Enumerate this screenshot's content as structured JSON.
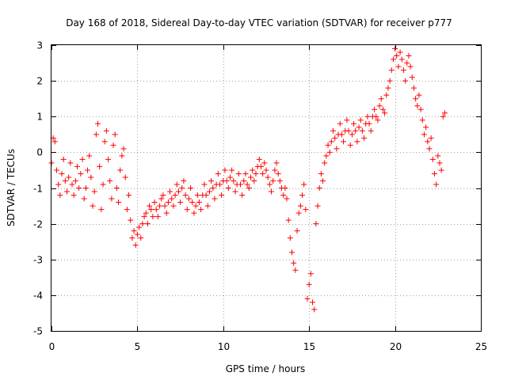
{
  "chart_data": {
    "type": "scatter",
    "title": "Day 168 of 2018, Sidereal Day-to-day VTEC variation (SDTVAR) for receiver p777",
    "xlabel": "GPS time / hours",
    "ylabel": "SDTVAR / TECUs",
    "xlim": [
      0,
      25
    ],
    "ylim": [
      -5,
      3
    ],
    "xticks": [
      0,
      5,
      10,
      15,
      20,
      25
    ],
    "yticks": [
      -5,
      -4,
      -3,
      -2,
      -1,
      0,
      1,
      2,
      3
    ],
    "xtick_labels": [
      "0",
      "5",
      "10",
      "15",
      "20",
      "25"
    ],
    "ytick_labels": [
      "-5",
      "-4",
      "-3",
      "-2",
      "-1",
      "0",
      "1",
      "2",
      "3"
    ],
    "grid": true,
    "marker": "plus",
    "color": "#ff0000",
    "series": [
      {
        "name": "p777",
        "points": [
          [
            0.0,
            -0.3
          ],
          [
            0.1,
            0.4
          ],
          [
            0.2,
            0.3
          ],
          [
            0.3,
            -0.5
          ],
          [
            0.4,
            -0.9
          ],
          [
            0.5,
            -1.2
          ],
          [
            0.6,
            -0.6
          ],
          [
            0.7,
            -0.2
          ],
          [
            0.8,
            -0.8
          ],
          [
            0.9,
            -1.1
          ],
          [
            1.0,
            -0.7
          ],
          [
            1.1,
            -0.3
          ],
          [
            1.2,
            -0.9
          ],
          [
            1.3,
            -1.2
          ],
          [
            1.4,
            -0.8
          ],
          [
            1.5,
            -0.4
          ],
          [
            1.6,
            -1.0
          ],
          [
            1.7,
            -0.6
          ],
          [
            1.8,
            -0.2
          ],
          [
            1.9,
            -1.3
          ],
          [
            2.0,
            -1.0
          ],
          [
            2.1,
            -0.5
          ],
          [
            2.2,
            -0.1
          ],
          [
            2.3,
            -0.7
          ],
          [
            2.4,
            -1.5
          ],
          [
            2.5,
            -1.1
          ],
          [
            2.6,
            0.5
          ],
          [
            2.7,
            0.8
          ],
          [
            2.8,
            -0.4
          ],
          [
            2.9,
            -1.6
          ],
          [
            3.0,
            -0.9
          ],
          [
            3.1,
            0.3
          ],
          [
            3.2,
            0.6
          ],
          [
            3.3,
            -0.2
          ],
          [
            3.4,
            -0.8
          ],
          [
            3.5,
            -1.3
          ],
          [
            3.6,
            0.2
          ],
          [
            3.7,
            0.5
          ],
          [
            3.8,
            -1.0
          ],
          [
            3.9,
            -1.4
          ],
          [
            4.0,
            -0.5
          ],
          [
            4.1,
            -0.1
          ],
          [
            4.2,
            0.1
          ],
          [
            4.3,
            -0.7
          ],
          [
            4.4,
            -1.6
          ],
          [
            4.5,
            -1.2
          ],
          [
            4.6,
            -1.9
          ],
          [
            4.7,
            -2.4
          ],
          [
            4.8,
            -2.2
          ],
          [
            4.9,
            -2.6
          ],
          [
            5.0,
            -2.3
          ],
          [
            5.1,
            -2.1
          ],
          [
            5.2,
            -2.4
          ],
          [
            5.3,
            -2.0
          ],
          [
            5.4,
            -1.8
          ],
          [
            5.5,
            -1.7
          ],
          [
            5.6,
            -2.0
          ],
          [
            5.7,
            -1.5
          ],
          [
            5.8,
            -1.6
          ],
          [
            5.9,
            -1.8
          ],
          [
            6.0,
            -1.4
          ],
          [
            6.1,
            -1.6
          ],
          [
            6.2,
            -1.8
          ],
          [
            6.3,
            -1.5
          ],
          [
            6.4,
            -1.3
          ],
          [
            6.5,
            -1.2
          ],
          [
            6.6,
            -1.5
          ],
          [
            6.7,
            -1.7
          ],
          [
            6.8,
            -1.4
          ],
          [
            6.9,
            -1.1
          ],
          [
            7.0,
            -1.3
          ],
          [
            7.1,
            -1.5
          ],
          [
            7.2,
            -1.2
          ],
          [
            7.3,
            -0.9
          ],
          [
            7.4,
            -1.1
          ],
          [
            7.5,
            -1.4
          ],
          [
            7.6,
            -1.0
          ],
          [
            7.7,
            -0.8
          ],
          [
            7.8,
            -1.2
          ],
          [
            7.9,
            -1.6
          ],
          [
            8.0,
            -1.3
          ],
          [
            8.1,
            -1.0
          ],
          [
            8.2,
            -1.4
          ],
          [
            8.3,
            -1.7
          ],
          [
            8.4,
            -1.5
          ],
          [
            8.5,
            -1.2
          ],
          [
            8.6,
            -1.4
          ],
          [
            8.7,
            -1.6
          ],
          [
            8.8,
            -1.2
          ],
          [
            8.9,
            -0.9
          ],
          [
            9.0,
            -1.2
          ],
          [
            9.1,
            -1.5
          ],
          [
            9.2,
            -1.1
          ],
          [
            9.3,
            -0.8
          ],
          [
            9.4,
            -1.0
          ],
          [
            9.5,
            -1.3
          ],
          [
            9.6,
            -0.9
          ],
          [
            9.7,
            -0.6
          ],
          [
            9.8,
            -0.9
          ],
          [
            9.9,
            -1.2
          ],
          [
            10.0,
            -0.8
          ],
          [
            10.1,
            -0.5
          ],
          [
            10.2,
            -0.8
          ],
          [
            10.3,
            -1.0
          ],
          [
            10.4,
            -0.7
          ],
          [
            10.5,
            -0.5
          ],
          [
            10.6,
            -0.8
          ],
          [
            10.7,
            -1.1
          ],
          [
            10.8,
            -0.9
          ],
          [
            10.9,
            -0.6
          ],
          [
            11.0,
            -0.9
          ],
          [
            11.1,
            -1.2
          ],
          [
            11.2,
            -0.8
          ],
          [
            11.3,
            -0.6
          ],
          [
            11.4,
            -0.9
          ],
          [
            11.5,
            -1.0
          ],
          [
            11.6,
            -0.7
          ],
          [
            11.7,
            -0.5
          ],
          [
            11.8,
            -0.8
          ],
          [
            11.9,
            -0.6
          ],
          [
            12.0,
            -0.4
          ],
          [
            12.1,
            -0.2
          ],
          [
            12.2,
            -0.4
          ],
          [
            12.3,
            -0.6
          ],
          [
            12.4,
            -0.3
          ],
          [
            12.5,
            -0.5
          ],
          [
            12.6,
            -0.7
          ],
          [
            12.7,
            -0.9
          ],
          [
            12.8,
            -1.1
          ],
          [
            12.9,
            -0.8
          ],
          [
            13.0,
            -0.5
          ],
          [
            13.1,
            -0.3
          ],
          [
            13.2,
            -0.6
          ],
          [
            13.3,
            -0.8
          ],
          [
            13.4,
            -1.0
          ],
          [
            13.5,
            -1.2
          ],
          [
            13.6,
            -1.0
          ],
          [
            13.7,
            -1.3
          ],
          [
            13.8,
            -1.9
          ],
          [
            13.9,
            -2.4
          ],
          [
            14.0,
            -2.8
          ],
          [
            14.1,
            -3.1
          ],
          [
            14.2,
            -3.3
          ],
          [
            14.3,
            -2.2
          ],
          [
            14.4,
            -1.7
          ],
          [
            14.5,
            -1.5
          ],
          [
            14.6,
            -1.2
          ],
          [
            14.7,
            -0.9
          ],
          [
            14.8,
            -1.6
          ],
          [
            14.9,
            -4.1
          ],
          [
            15.0,
            -3.7
          ],
          [
            15.1,
            -3.4
          ],
          [
            15.2,
            -4.2
          ],
          [
            15.3,
            -4.4
          ],
          [
            15.4,
            -2.0
          ],
          [
            15.5,
            -1.5
          ],
          [
            15.6,
            -1.0
          ],
          [
            15.7,
            -0.6
          ],
          [
            15.8,
            -0.8
          ],
          [
            15.9,
            -0.3
          ],
          [
            16.0,
            -0.1
          ],
          [
            16.1,
            0.2
          ],
          [
            16.2,
            0.0
          ],
          [
            16.3,
            0.3
          ],
          [
            16.4,
            0.6
          ],
          [
            16.5,
            0.4
          ],
          [
            16.6,
            0.1
          ],
          [
            16.7,
            0.5
          ],
          [
            16.8,
            0.8
          ],
          [
            16.9,
            0.5
          ],
          [
            17.0,
            0.3
          ],
          [
            17.1,
            0.6
          ],
          [
            17.2,
            0.9
          ],
          [
            17.3,
            0.6
          ],
          [
            17.4,
            0.2
          ],
          [
            17.5,
            0.5
          ],
          [
            17.6,
            0.8
          ],
          [
            17.7,
            0.6
          ],
          [
            17.8,
            0.3
          ],
          [
            17.9,
            0.7
          ],
          [
            18.0,
            0.9
          ],
          [
            18.1,
            0.6
          ],
          [
            18.2,
            0.4
          ],
          [
            18.3,
            0.8
          ],
          [
            18.4,
            1.0
          ],
          [
            18.5,
            0.8
          ],
          [
            18.6,
            0.6
          ],
          [
            18.7,
            1.0
          ],
          [
            18.8,
            1.2
          ],
          [
            18.9,
            1.0
          ],
          [
            19.0,
            0.9
          ],
          [
            19.1,
            1.3
          ],
          [
            19.2,
            1.5
          ],
          [
            19.3,
            1.2
          ],
          [
            19.4,
            1.1
          ],
          [
            19.5,
            1.6
          ],
          [
            19.6,
            1.8
          ],
          [
            19.7,
            2.0
          ],
          [
            19.8,
            2.3
          ],
          [
            19.9,
            2.6
          ],
          [
            20.0,
            2.9
          ],
          [
            20.1,
            2.7
          ],
          [
            20.2,
            2.4
          ],
          [
            20.3,
            2.8
          ],
          [
            20.4,
            2.6
          ],
          [
            20.5,
            2.3
          ],
          [
            20.6,
            2.0
          ],
          [
            20.7,
            2.5
          ],
          [
            20.8,
            2.7
          ],
          [
            20.9,
            2.4
          ],
          [
            21.0,
            2.1
          ],
          [
            21.1,
            1.8
          ],
          [
            21.2,
            1.5
          ],
          [
            21.3,
            1.3
          ],
          [
            21.4,
            1.6
          ],
          [
            21.5,
            1.2
          ],
          [
            21.6,
            0.9
          ],
          [
            21.7,
            0.5
          ],
          [
            21.8,
            0.7
          ],
          [
            21.9,
            0.3
          ],
          [
            22.0,
            0.1
          ],
          [
            22.1,
            0.4
          ],
          [
            22.2,
            -0.2
          ],
          [
            22.3,
            -0.6
          ],
          [
            22.4,
            -0.9
          ],
          [
            22.5,
            -0.1
          ],
          [
            22.6,
            -0.3
          ],
          [
            22.7,
            -0.5
          ],
          [
            22.8,
            1.0
          ],
          [
            22.9,
            1.1
          ]
        ]
      }
    ]
  }
}
